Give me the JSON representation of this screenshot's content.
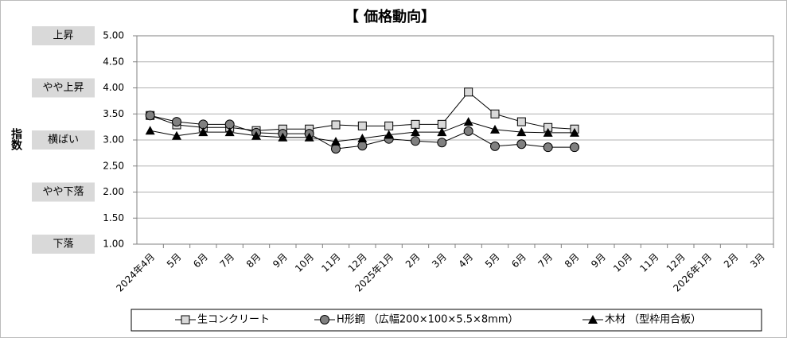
{
  "chart_data": {
    "type": "line",
    "title": "【 価格動向】",
    "ylabel": "指数",
    "categories": [
      "2024年4月",
      "5月",
      "6月",
      "7月",
      "8月",
      "9月",
      "10月",
      "11月",
      "12月",
      "2025年1月",
      "2月",
      "3月",
      "4月",
      "5月",
      "6月",
      "7月",
      "8月",
      "9月",
      "10月",
      "11月",
      "12月",
      "2026年1月",
      "2月",
      "3月"
    ],
    "series": [
      {
        "name": "生コンクリート",
        "color": "#000000",
        "marker": "square",
        "values": [
          3.47,
          3.29,
          3.24,
          3.24,
          3.18,
          3.21,
          3.21,
          3.29,
          3.27,
          3.27,
          3.3,
          3.3,
          3.92,
          3.5,
          3.35,
          3.24,
          3.21,
          null,
          null,
          null,
          null,
          null,
          null,
          null
        ]
      },
      {
        "name": "H形鋼 （広幅200×100×5.5×8mm）",
        "color": "#000000",
        "marker": "circle",
        "values": [
          3.47,
          3.35,
          3.3,
          3.3,
          3.14,
          3.12,
          3.12,
          2.83,
          2.89,
          3.02,
          2.98,
          2.95,
          3.17,
          2.88,
          2.92,
          2.86,
          2.86,
          null,
          null,
          null,
          null,
          null,
          null,
          null
        ]
      },
      {
        "name": "木材 （型枠用合板）",
        "color": "#000000",
        "marker": "triangle",
        "values": [
          3.18,
          3.08,
          3.15,
          3.15,
          3.08,
          3.05,
          3.05,
          2.97,
          3.03,
          3.1,
          3.15,
          3.15,
          3.35,
          3.2,
          3.15,
          3.14,
          3.14,
          null,
          null,
          null,
          null,
          null,
          null,
          null
        ]
      }
    ],
    "ylim": [
      1,
      5
    ],
    "yticks": [
      {
        "value": 1,
        "label": "1.00"
      },
      {
        "value": 1.5,
        "label": "1.50"
      },
      {
        "value": 2,
        "label": "2.00"
      },
      {
        "value": 2.5,
        "label": "2.50"
      },
      {
        "value": 3,
        "label": "3.00"
      },
      {
        "value": 3.5,
        "label": "3.50"
      },
      {
        "value": 4,
        "label": "4.00"
      },
      {
        "value": 4.5,
        "label": "4.50"
      },
      {
        "value": 5,
        "label": "5.00"
      }
    ],
    "level_labels": [
      {
        "value": 5,
        "label": "上昇"
      },
      {
        "value": 4,
        "label": "やや上昇"
      },
      {
        "value": 3,
        "label": "横ばい"
      },
      {
        "value": 2,
        "label": "やや下落"
      },
      {
        "value": 1,
        "label": "下落"
      }
    ],
    "grid": true,
    "legend": "bottom"
  }
}
